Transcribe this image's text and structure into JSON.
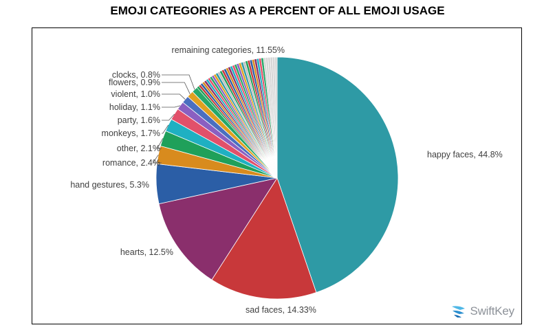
{
  "chart_data": {
    "type": "pie",
    "title": "EMOJI CATEGORIES AS A PERCENT OF ALL EMOJI USAGE",
    "slices": [
      {
        "label": "happy faces, 44.8%",
        "value": 44.8,
        "color": "#2e9aa5"
      },
      {
        "label": "sad faces, 14.33%",
        "value": 14.33,
        "color": "#c8383a"
      },
      {
        "label": "hearts, 12.5%",
        "value": 12.5,
        "color": "#8a2f6c"
      },
      {
        "label": "hand gestures, 5.3%",
        "value": 5.3,
        "color": "#2b5ea6"
      },
      {
        "label": "romance, 2.4%",
        "value": 2.4,
        "color": "#d88b1e"
      },
      {
        "label": "other, 2.1%",
        "value": 2.1,
        "color": "#1fa05a"
      },
      {
        "label": "monkeys, 1.7%",
        "value": 1.7,
        "color": "#1fb0c2"
      },
      {
        "label": "party, 1.6%",
        "value": 1.6,
        "color": "#e2506a"
      },
      {
        "label": "holiday, 1.1%",
        "value": 1.1,
        "color": "#8a5fc1"
      },
      {
        "label": "violent, 1.0%",
        "value": 1.0,
        "color": "#4a6fc0"
      },
      {
        "label": "flowers, 0.9%",
        "value": 0.9,
        "color": "#e0a020"
      },
      {
        "label": "clocks, 0.8%",
        "value": 0.8,
        "color": "#26a86a"
      },
      {
        "label": "remaining categories, 11.55%",
        "value": 11.55,
        "color": "#d9d9d9"
      }
    ],
    "remaining_stripe_colors": [
      "#1fa05a",
      "#c8383a",
      "#2b5ea6",
      "#d88b1e",
      "#8a2f6c",
      "#1fb0c2",
      "#e2506a",
      "#26a86a",
      "#8a5fc1",
      "#e0a020",
      "#2e9aa5",
      "#c0c0c0"
    ]
  },
  "logo": {
    "text": "SwiftKey"
  }
}
